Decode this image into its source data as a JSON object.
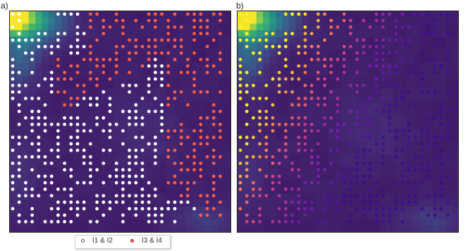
{
  "panels": {
    "a": {
      "label": "a)"
    },
    "b": {
      "label": "b)"
    }
  },
  "legend": {
    "items": [
      {
        "label": "I1 & I2",
        "color": "#ffffff"
      },
      {
        "label": "I3 & I4",
        "color": "#f15e4b"
      }
    ]
  },
  "chart_data": [
    {
      "type": "heatmap",
      "panel": "a",
      "title": "",
      "grid_cells": 34,
      "colormap": "viridis",
      "background_hotspots": [
        "top-left (yellow)",
        "left-middle (teal)",
        "bottom-right (teal)"
      ],
      "overlay": {
        "type": "scatter",
        "point_grid": "regular grid of sample points",
        "series": [
          {
            "name": "I1 & I2",
            "color": "#ffffff",
            "region": "upper-left band and lower-left half"
          },
          {
            "name": "I3 & I4",
            "color": "#f15e4b",
            "region": "upper-right half"
          }
        ]
      }
    },
    {
      "type": "heatmap",
      "panel": "b",
      "title": "",
      "grid_cells": 34,
      "colormap": "viridis",
      "overlay": {
        "type": "scatter",
        "colormap": "plasma",
        "description": "points colored continuously, yellow near upper-left, purple toward lower-right"
      }
    }
  ]
}
